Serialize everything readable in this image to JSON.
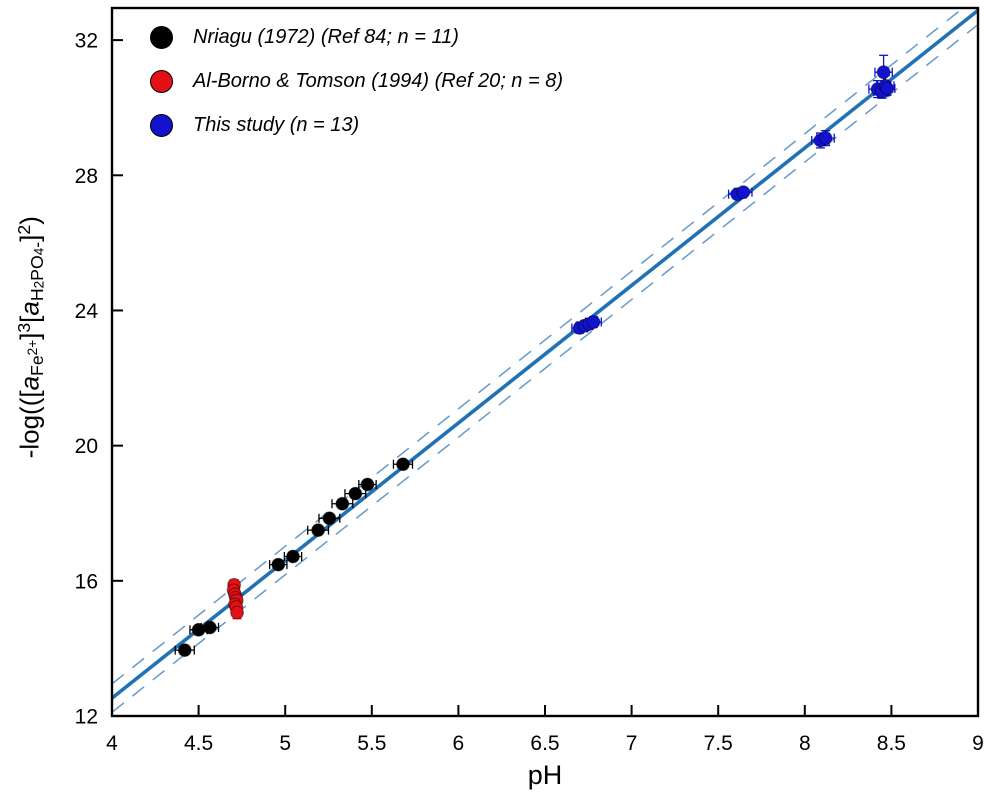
{
  "figure": {
    "background": "#ffffff"
  },
  "chart_data": {
    "type": "scatter",
    "xlabel": "pH",
    "ylabel_plain": "-log(([a_Fe2+]^3[a_H2PO4-]^2)",
    "ylabel_tokens": [
      {
        "t": "-log(([",
        "s": "n"
      },
      {
        "t": "a",
        "s": "i"
      },
      {
        "t": "Fe",
        "s": "sub"
      },
      {
        "t": "2+",
        "s": "sup2"
      },
      {
        "t": "]",
        "s": "n"
      },
      {
        "t": "3",
        "s": "sup"
      },
      {
        "t": "[",
        "s": "n"
      },
      {
        "t": "a",
        "s": "i"
      },
      {
        "t": "H",
        "s": "sub"
      },
      {
        "t": "2",
        "s": "sub2"
      },
      {
        "t": "PO",
        "s": "sub"
      },
      {
        "t": "4",
        "s": "sub2"
      },
      {
        "t": "-",
        "s": "sub"
      },
      {
        "t": "]",
        "s": "n"
      },
      {
        "t": "2",
        "s": "sup"
      },
      {
        "t": ")",
        "s": "n"
      }
    ],
    "xlim": [
      4,
      9
    ],
    "ylim": [
      12,
      32.95
    ],
    "x_ticks": [
      4,
      4.5,
      5,
      5.5,
      6,
      6.5,
      7,
      7.5,
      8,
      8.5,
      9
    ],
    "x_tick_labels": [
      "4",
      "4.5",
      "5",
      "5.5",
      "6",
      "6.5",
      "7",
      "7.5",
      "8",
      "8.5",
      "9"
    ],
    "y_ticks": [
      12,
      16,
      20,
      24,
      28,
      32
    ],
    "y_tick_labels": [
      "12",
      "16",
      "20",
      "24",
      "28",
      "32"
    ],
    "grid": false,
    "legend_position": "top-left-inside",
    "point_format": [
      "x",
      "y",
      "xerr",
      "yerr"
    ],
    "series": [
      {
        "name": "nriagu-1972",
        "label": "Nriagu (1972) (Ref 84; n = 11)",
        "color": "#000000",
        "points": [
          [
            4.42,
            13.95,
            0.055,
            0
          ],
          [
            4.5,
            14.55,
            0.05,
            0
          ],
          [
            4.565,
            14.62,
            0.05,
            0
          ],
          [
            4.96,
            16.48,
            0.05,
            0
          ],
          [
            5.045,
            16.72,
            0.05,
            0
          ],
          [
            5.19,
            17.5,
            0.06,
            0
          ],
          [
            5.255,
            17.85,
            0.06,
            0
          ],
          [
            5.33,
            18.28,
            0.06,
            0
          ],
          [
            5.405,
            18.58,
            0.06,
            0
          ],
          [
            5.475,
            18.85,
            0.05,
            0
          ],
          [
            5.68,
            19.45,
            0.055,
            0
          ]
        ]
      },
      {
        "name": "al-borno-tomson-1994",
        "label": "Al-Borno & Tomson (1994) (Ref 20; n = 8)",
        "color": "#e31016",
        "points": [
          [
            4.705,
            15.88,
            0.02,
            0.15
          ],
          [
            4.702,
            15.72,
            0.02,
            0.15
          ],
          [
            4.71,
            15.6,
            0.02,
            0.15
          ],
          [
            4.715,
            15.5,
            0.02,
            0.15
          ],
          [
            4.72,
            15.42,
            0.02,
            0.15
          ],
          [
            4.71,
            15.3,
            0.02,
            0.15
          ],
          [
            4.718,
            15.22,
            0.02,
            0.15
          ],
          [
            4.722,
            15.06,
            0.02,
            0.18
          ]
        ]
      },
      {
        "name": "this-study",
        "label": "This study (n = 13)",
        "color": "#1212cf",
        "points": [
          [
            6.7,
            23.48,
            0.045,
            0.15
          ],
          [
            6.73,
            23.55,
            0.045,
            0.15
          ],
          [
            6.755,
            23.6,
            0.04,
            0.15
          ],
          [
            6.78,
            23.66,
            0.045,
            0.15
          ],
          [
            7.61,
            27.44,
            0.05,
            0.12
          ],
          [
            7.645,
            27.5,
            0.05,
            0.12
          ],
          [
            8.09,
            29.03,
            0.05,
            0.22
          ],
          [
            8.12,
            29.1,
            0.05,
            0.22
          ],
          [
            8.42,
            30.55,
            0.05,
            0.25
          ],
          [
            8.445,
            30.48,
            0.045,
            0.2
          ],
          [
            8.455,
            31.05,
            0.05,
            0.5
          ],
          [
            8.465,
            30.65,
            0.05,
            0.3
          ],
          [
            8.475,
            30.57,
            0.045,
            0.2
          ]
        ]
      }
    ],
    "fit": {
      "slope": 4.07,
      "intercept": -3.75,
      "line_color": "#2171b5",
      "band_offset": 0.42,
      "band_color": "#6699cc"
    }
  }
}
